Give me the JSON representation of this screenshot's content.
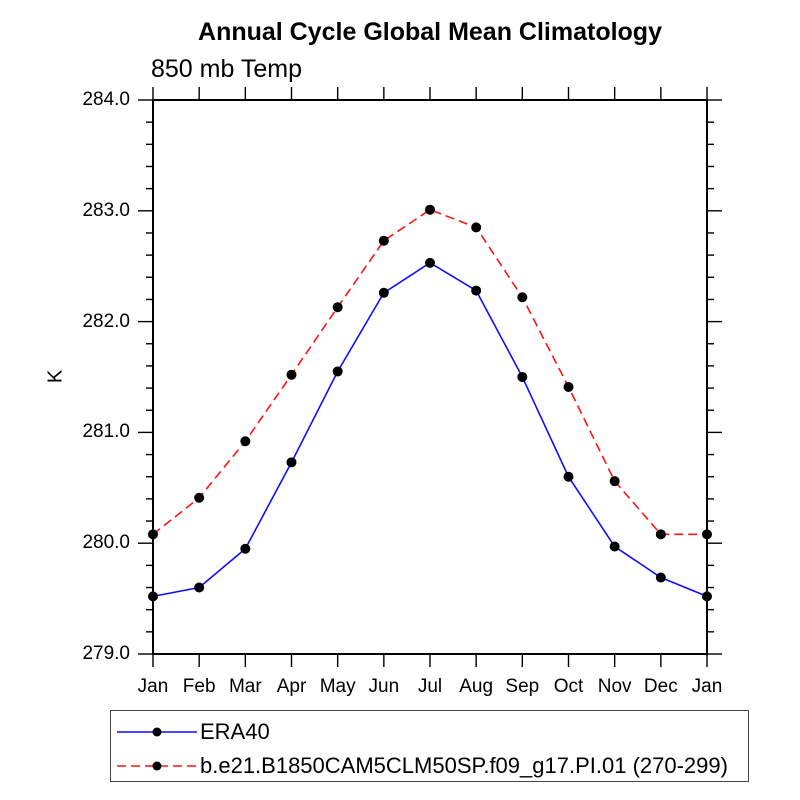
{
  "chart_data": {
    "type": "line",
    "title": "Annual Cycle Global Mean Climatology",
    "subtitle": "850 mb Temp",
    "xlabel": "",
    "ylabel": "K",
    "ylim": [
      279.0,
      284.0
    ],
    "ytick_major": 1.0,
    "ytick_minor": 0.2,
    "ytick_labels": [
      "279.0",
      "280.0",
      "281.0",
      "282.0",
      "283.0",
      "284.0"
    ],
    "grid": false,
    "legend_position": "bottom-left-box",
    "marker": "filled-circle",
    "marker_color": "#000000",
    "frame_color": "#000000",
    "categories": [
      "Jan",
      "Feb",
      "Mar",
      "Apr",
      "May",
      "Jun",
      "Jul",
      "Aug",
      "Sep",
      "Oct",
      "Nov",
      "Dec",
      "Jan"
    ],
    "series": [
      {
        "name": "ERA40",
        "color": "#0f0fff",
        "style": "solid",
        "values": [
          279.52,
          279.6,
          279.95,
          280.73,
          281.55,
          282.26,
          282.53,
          282.28,
          281.5,
          280.6,
          279.97,
          279.69,
          279.52
        ]
      },
      {
        "name": "b.e21.B1850CAM5CLM50SP.f09_g17.PI.01 (270-299)",
        "color": "#ff1414",
        "style": "dashed",
        "values": [
          280.08,
          280.41,
          280.92,
          281.52,
          282.13,
          282.73,
          283.01,
          282.85,
          282.22,
          281.41,
          280.56,
          280.08,
          280.08
        ]
      }
    ]
  }
}
